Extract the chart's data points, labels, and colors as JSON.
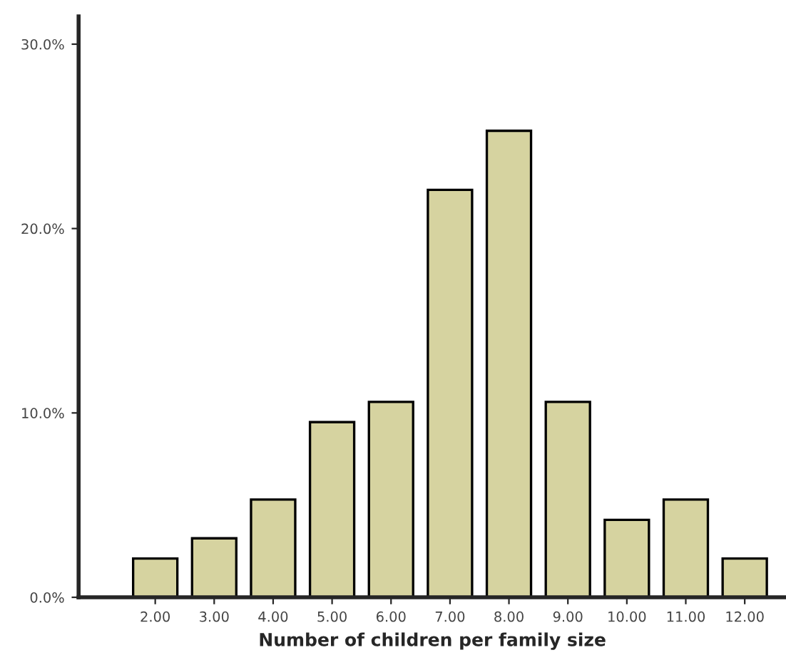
{
  "chart_data": {
    "type": "bar",
    "xlabel": "Number of children per family size",
    "categories": [
      "2.00",
      "3.00",
      "4.00",
      "5.00",
      "6.00",
      "7.00",
      "8.00",
      "9.00",
      "10.00",
      "11.00",
      "12.00"
    ],
    "values": [
      2.1,
      3.2,
      5.3,
      9.5,
      10.6,
      22.1,
      25.3,
      10.6,
      4.2,
      5.3,
      2.1
    ],
    "color": "#d6d3a0",
    "ylim": [
      0,
      31.5
    ],
    "yticks": [
      {
        "value": 0,
        "label": "0.0%"
      },
      {
        "value": 10,
        "label": "10.0%"
      },
      {
        "value": 20,
        "label": "20.0%"
      },
      {
        "value": 30,
        "label": "30.0%"
      }
    ],
    "grid": false,
    "legend": false
  }
}
